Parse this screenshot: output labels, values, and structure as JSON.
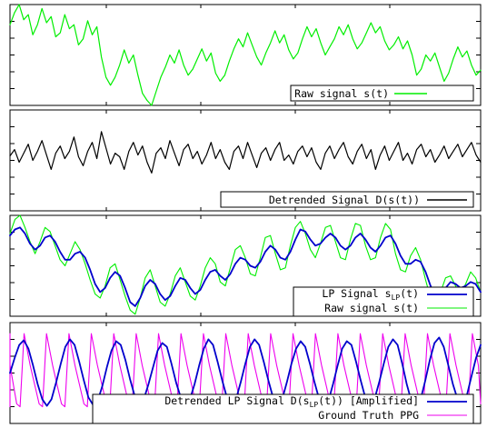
{
  "chart_data": [
    {
      "type": "line",
      "panel": 1,
      "legend_placement": "bottom-right",
      "grid": false,
      "series": [
        {
          "name": "Raw signal s(t)",
          "color": "#00ee00",
          "values": [
            0.8,
            0.92,
            1.0,
            0.85,
            0.9,
            0.7,
            0.8,
            0.96,
            0.82,
            0.88,
            0.68,
            0.72,
            0.9,
            0.76,
            0.8,
            0.6,
            0.66,
            0.84,
            0.7,
            0.78,
            0.48,
            0.28,
            0.2,
            0.28,
            0.4,
            0.55,
            0.42,
            0.5,
            0.3,
            0.12,
            0.05,
            0.0,
            0.14,
            0.28,
            0.38,
            0.5,
            0.42,
            0.55,
            0.4,
            0.3,
            0.36,
            0.46,
            0.56,
            0.44,
            0.52,
            0.32,
            0.24,
            0.3,
            0.44,
            0.56,
            0.66,
            0.58,
            0.72,
            0.6,
            0.48,
            0.4,
            0.52,
            0.62,
            0.74,
            0.62,
            0.7,
            0.55,
            0.46,
            0.52,
            0.66,
            0.78,
            0.68,
            0.76,
            0.62,
            0.5,
            0.58,
            0.66,
            0.78,
            0.7,
            0.8,
            0.66,
            0.56,
            0.62,
            0.72,
            0.82,
            0.72,
            0.78,
            0.64,
            0.55,
            0.6,
            0.68,
            0.56,
            0.64,
            0.5,
            0.3,
            0.36,
            0.5,
            0.44,
            0.52,
            0.38,
            0.24,
            0.32,
            0.46,
            0.58,
            0.48,
            0.54,
            0.4,
            0.3,
            0.35
          ]
        }
      ]
    },
    {
      "type": "line",
      "panel": 2,
      "legend_placement": "bottom-right",
      "grid": false,
      "series": [
        {
          "name": "Detrended Signal D(s(t))",
          "color": "#000000",
          "values": [
            0.55,
            0.62,
            0.48,
            0.58,
            0.68,
            0.5,
            0.6,
            0.72,
            0.56,
            0.4,
            0.58,
            0.66,
            0.52,
            0.6,
            0.76,
            0.54,
            0.44,
            0.6,
            0.7,
            0.52,
            0.82,
            0.64,
            0.46,
            0.58,
            0.54,
            0.4,
            0.6,
            0.7,
            0.56,
            0.66,
            0.48,
            0.36,
            0.58,
            0.64,
            0.52,
            0.72,
            0.58,
            0.44,
            0.62,
            0.68,
            0.52,
            0.6,
            0.46,
            0.56,
            0.7,
            0.52,
            0.62,
            0.48,
            0.4,
            0.6,
            0.66,
            0.52,
            0.7,
            0.56,
            0.42,
            0.58,
            0.64,
            0.5,
            0.62,
            0.7,
            0.5,
            0.56,
            0.46,
            0.6,
            0.66,
            0.54,
            0.64,
            0.48,
            0.4,
            0.58,
            0.66,
            0.52,
            0.62,
            0.7,
            0.54,
            0.46,
            0.6,
            0.68,
            0.52,
            0.62,
            0.4,
            0.56,
            0.66,
            0.5,
            0.6,
            0.7,
            0.5,
            0.58,
            0.46,
            0.62,
            0.68,
            0.54,
            0.62,
            0.48,
            0.56,
            0.66,
            0.52,
            0.6,
            0.68,
            0.54,
            0.62,
            0.7,
            0.56,
            0.48
          ]
        }
      ]
    },
    {
      "type": "line",
      "panel": 3,
      "legend_placement": "bottom-right",
      "grid": false,
      "series": [
        {
          "name": "LP Signal s_LP(t)",
          "color": "#0000cc",
          "values": [
            0.8,
            0.86,
            0.88,
            0.82,
            0.72,
            0.66,
            0.7,
            0.78,
            0.8,
            0.74,
            0.64,
            0.56,
            0.56,
            0.62,
            0.64,
            0.58,
            0.46,
            0.32,
            0.24,
            0.28,
            0.38,
            0.44,
            0.4,
            0.28,
            0.14,
            0.1,
            0.18,
            0.3,
            0.36,
            0.32,
            0.22,
            0.16,
            0.2,
            0.3,
            0.38,
            0.36,
            0.28,
            0.22,
            0.26,
            0.36,
            0.44,
            0.46,
            0.4,
            0.36,
            0.42,
            0.52,
            0.58,
            0.56,
            0.5,
            0.48,
            0.54,
            0.64,
            0.7,
            0.66,
            0.58,
            0.56,
            0.64,
            0.76,
            0.86,
            0.84,
            0.76,
            0.7,
            0.72,
            0.78,
            0.82,
            0.78,
            0.7,
            0.66,
            0.7,
            0.78,
            0.82,
            0.76,
            0.68,
            0.64,
            0.7,
            0.78,
            0.8,
            0.72,
            0.6,
            0.52,
            0.52,
            0.56,
            0.54,
            0.44,
            0.3,
            0.2,
            0.2,
            0.28,
            0.34,
            0.32,
            0.28,
            0.3,
            0.34,
            0.32,
            0.24
          ]
        },
        {
          "name": "Raw signal s(t)",
          "color": "#00ee00",
          "values": [
            0.82,
            0.96,
            1.0,
            0.88,
            0.74,
            0.62,
            0.74,
            0.88,
            0.84,
            0.7,
            0.56,
            0.5,
            0.62,
            0.74,
            0.66,
            0.52,
            0.36,
            0.22,
            0.18,
            0.3,
            0.48,
            0.52,
            0.36,
            0.2,
            0.06,
            0.02,
            0.18,
            0.38,
            0.46,
            0.3,
            0.14,
            0.1,
            0.22,
            0.4,
            0.48,
            0.34,
            0.2,
            0.16,
            0.3,
            0.48,
            0.58,
            0.52,
            0.34,
            0.3,
            0.48,
            0.66,
            0.7,
            0.58,
            0.42,
            0.4,
            0.58,
            0.78,
            0.8,
            0.62,
            0.46,
            0.48,
            0.7,
            0.88,
            0.94,
            0.82,
            0.66,
            0.58,
            0.72,
            0.88,
            0.9,
            0.74,
            0.58,
            0.56,
            0.76,
            0.92,
            0.9,
            0.7,
            0.56,
            0.58,
            0.78,
            0.92,
            0.86,
            0.62,
            0.46,
            0.44,
            0.6,
            0.68,
            0.56,
            0.36,
            0.18,
            0.12,
            0.24,
            0.38,
            0.4,
            0.3,
            0.22,
            0.32,
            0.44,
            0.38,
            0.24
          ]
        }
      ]
    },
    {
      "type": "line",
      "panel": 4,
      "legend_placement": "bottom-right",
      "grid": false,
      "series": [
        {
          "name": "Detrended LP Signal D(s_LP(t)) [Amplified]",
          "color": "#0000cc",
          "cycles": 21,
          "values": [
            0.5,
            0.66,
            0.8,
            0.85,
            0.76,
            0.58,
            0.38,
            0.22,
            0.15,
            0.22,
            0.4,
            0.6,
            0.78,
            0.86,
            0.8,
            0.62,
            0.42,
            0.24,
            0.16,
            0.2,
            0.36,
            0.56,
            0.74,
            0.84,
            0.8,
            0.64,
            0.44,
            0.26,
            0.18,
            0.22,
            0.38,
            0.56,
            0.74,
            0.82,
            0.78,
            0.6,
            0.4,
            0.24,
            0.16,
            0.22,
            0.38,
            0.58,
            0.76,
            0.86,
            0.8,
            0.62,
            0.42,
            0.24,
            0.16,
            0.22,
            0.4,
            0.6,
            0.78,
            0.86,
            0.8,
            0.62,
            0.42,
            0.24,
            0.16,
            0.22,
            0.4,
            0.6,
            0.76,
            0.84,
            0.78,
            0.6,
            0.4,
            0.22,
            0.14,
            0.2,
            0.38,
            0.58,
            0.76,
            0.84,
            0.8,
            0.62,
            0.42,
            0.24,
            0.16,
            0.22,
            0.4,
            0.6,
            0.78,
            0.86,
            0.8,
            0.6,
            0.38,
            0.2,
            0.14,
            0.22,
            0.42,
            0.64,
            0.82,
            0.88,
            0.78,
            0.58,
            0.38,
            0.22,
            0.16,
            0.26,
            0.46,
            0.66,
            0.8
          ]
        },
        {
          "name": "Ground Truth PPG",
          "color": "#ee00ee",
          "cycles": 21,
          "peak": 0.92,
          "trough": 0.14
        }
      ]
    }
  ]
}
